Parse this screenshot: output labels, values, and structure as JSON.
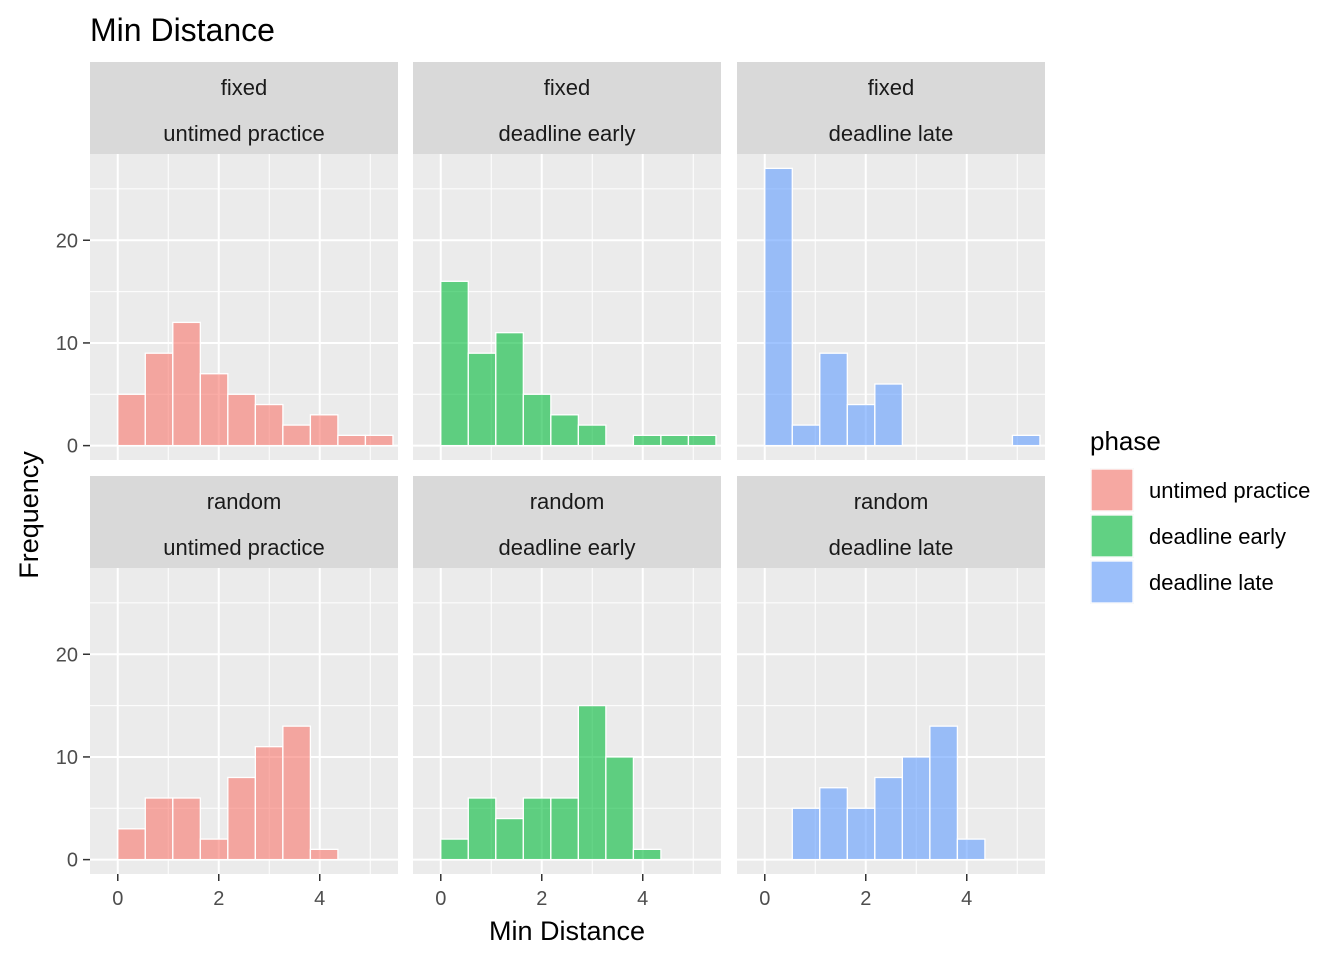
{
  "chart_data": {
    "type": "bar",
    "title": "Min Distance",
    "xlabel": "Min Distance",
    "ylabel": "Frequency",
    "xlim": [
      -0.55,
      5.55
    ],
    "ylim": [
      -1.4,
      28.4
    ],
    "x_ticks": [
      0,
      2,
      4
    ],
    "y_ticks": [
      0,
      10,
      20
    ],
    "bin_width": 0.545,
    "grid": true,
    "legend": {
      "title": "phase",
      "position": "right",
      "entries": [
        {
          "label": "untimed practice",
          "color": "#F8766D"
        },
        {
          "label": "deadline early",
          "color": "#00BA38"
        },
        {
          "label": "deadline late",
          "color": "#619CFF"
        }
      ]
    },
    "panels": [
      {
        "row_label": "fixed",
        "col_label": "untimed practice",
        "color": "#F8766D",
        "bins": [
          0.0,
          0.545,
          1.09,
          1.635,
          2.18,
          2.725,
          3.27,
          3.815,
          4.36,
          4.905
        ],
        "values": [
          5,
          9,
          12,
          7,
          5,
          4,
          2,
          3,
          1,
          1
        ]
      },
      {
        "row_label": "fixed",
        "col_label": "deadline early",
        "color": "#00BA38",
        "bins": [
          0.0,
          0.545,
          1.09,
          1.635,
          2.18,
          2.725,
          3.27,
          3.815,
          4.36,
          4.905
        ],
        "values": [
          16,
          9,
          11,
          5,
          3,
          2,
          0,
          1,
          1,
          1
        ]
      },
      {
        "row_label": "fixed",
        "col_label": "deadline late",
        "color": "#619CFF",
        "bins": [
          0.0,
          0.545,
          1.09,
          1.635,
          2.18,
          2.725,
          3.27,
          3.815,
          4.36,
          4.905
        ],
        "values": [
          27,
          2,
          9,
          4,
          6,
          0,
          0,
          0,
          0,
          1
        ]
      },
      {
        "row_label": "random",
        "col_label": "untimed practice",
        "color": "#F8766D",
        "bins": [
          0.0,
          0.545,
          1.09,
          1.635,
          2.18,
          2.725,
          3.27,
          3.815
        ],
        "values": [
          3,
          6,
          6,
          2,
          8,
          11,
          13,
          1
        ]
      },
      {
        "row_label": "random",
        "col_label": "deadline early",
        "color": "#00BA38",
        "bins": [
          0.0,
          0.545,
          1.09,
          1.635,
          2.18,
          2.725,
          3.27,
          3.815
        ],
        "values": [
          2,
          6,
          4,
          6,
          6,
          15,
          10,
          1
        ]
      },
      {
        "row_label": "random",
        "col_label": "deadline late",
        "color": "#619CFF",
        "bins": [
          0.545,
          1.09,
          1.635,
          2.18,
          2.725,
          3.27,
          3.815
        ],
        "values": [
          5,
          7,
          5,
          8,
          10,
          13,
          2
        ]
      }
    ]
  }
}
